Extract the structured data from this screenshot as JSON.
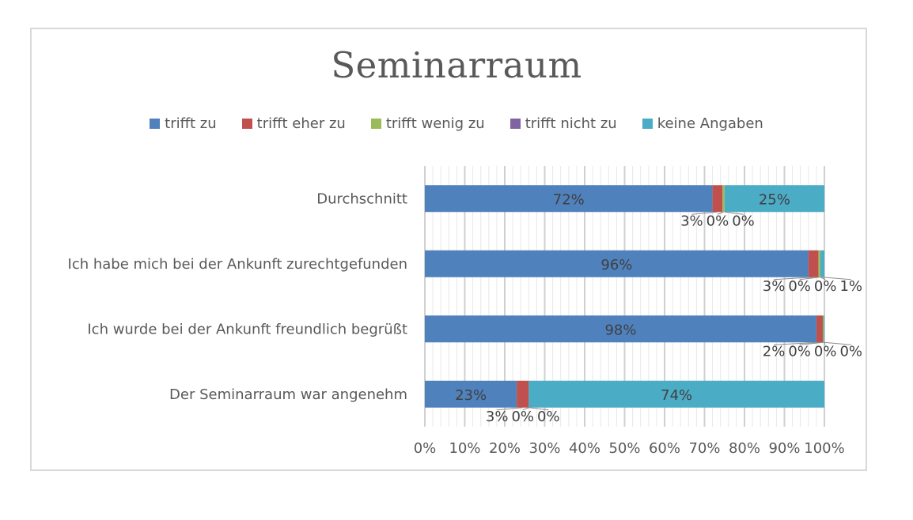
{
  "chart_data": {
    "type": "bar",
    "orientation": "horizontal",
    "stacked": "percent",
    "title": "Seminarraum",
    "xlabel": "",
    "ylabel": "",
    "xlim": [
      0,
      100
    ],
    "grid": true,
    "legend_position": "top",
    "categories": [
      "Durchschnitt",
      "Ich habe mich bei der Ankunft zurechtgefunden",
      "Ich wurde bei der Ankunft freundlich begrüßt",
      "Der Seminarraum war angenehm"
    ],
    "x_ticks": [
      "0%",
      "10%",
      "20%",
      "30%",
      "40%",
      "50%",
      "60%",
      "70%",
      "80%",
      "90%",
      "100%"
    ],
    "series": [
      {
        "name": "trifft zu",
        "color": "#4f81bd",
        "values": [
          72,
          96,
          98,
          23
        ]
      },
      {
        "name": "trifft eher zu",
        "color": "#c0504d",
        "values": [
          2.5,
          2.5,
          1.6,
          3
        ]
      },
      {
        "name": "trifft wenig zu",
        "color": "#9bbb59",
        "values": [
          0.5,
          0.5,
          0.2,
          0
        ]
      },
      {
        "name": "trifft nicht zu",
        "color": "#8064a2",
        "values": [
          0,
          0,
          0,
          0
        ]
      },
      {
        "name": "keine Angaben",
        "color": "#4bacc6",
        "values": [
          25,
          1,
          0.2,
          74
        ]
      }
    ],
    "data_labels": [
      [
        "72%",
        "3%",
        "0%",
        "0%",
        "25%"
      ],
      [
        "96%",
        "3%",
        "0%",
        "0%",
        "1%"
      ],
      [
        "98%",
        "2%",
        "0%",
        "0%",
        "0%"
      ],
      [
        "23%",
        "3%",
        "0%",
        "0%",
        "74%"
      ]
    ]
  }
}
